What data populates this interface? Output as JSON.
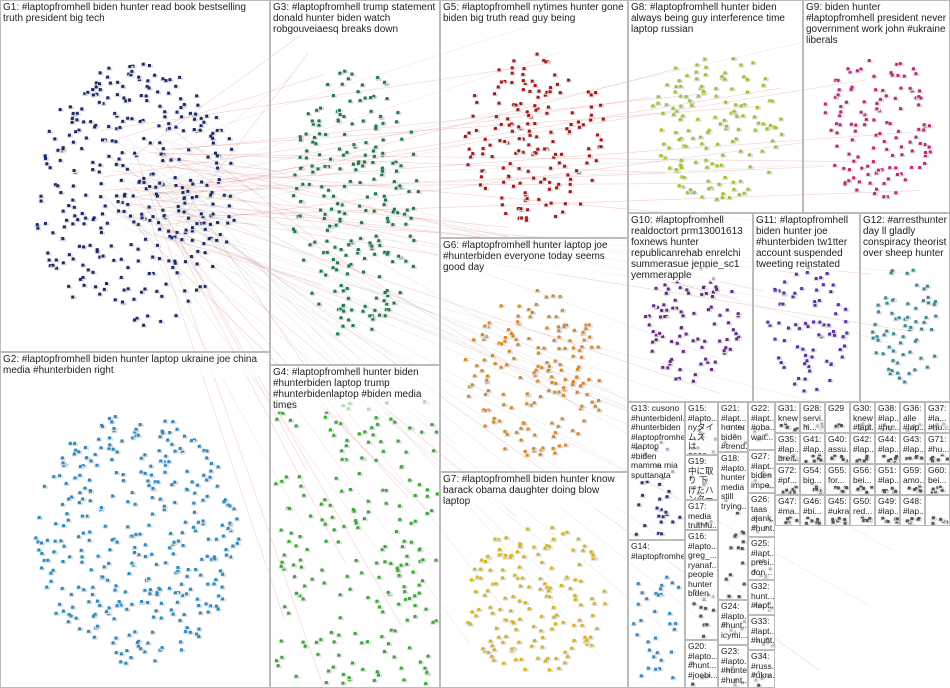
{
  "groups": [
    {
      "label": "G1: #laptopfromhell biden hunter read book bestselling truth president big tech"
    },
    {
      "label": "G2: #laptopfromhell biden hunter laptop ukraine joe china media #hunterbiden right"
    },
    {
      "label": "G3: #laptopfromhell trump statement donald hunter biden watch robgouveiaesq breaks down"
    },
    {
      "label": "G4: #laptopfromhell hunter biden #hunterbiden laptop trump #hunterbidenlaptop #biden media times"
    },
    {
      "label": "G5: #laptopfromhell nytimes hunter gone biden big truth read guy being"
    },
    {
      "label": "G6: #laptopfromhell hunter laptop joe #hunterbiden everyone today seems good day"
    },
    {
      "label": "G7: #laptopfromhell biden hunter know barack obama daughter doing blow laptop"
    },
    {
      "label": "G8: #laptopfromhell hunter biden always being guy interference time laptop russian"
    },
    {
      "label": "G9: biden hunter #laptopfromhell president never government work john #ukraine liberals"
    },
    {
      "label": "G10: #laptopfromhell realdoctort prm13001613 foxnews hunter republicanrehab enrelchi summerasue jennie_sc1 yemmerapple"
    },
    {
      "label": "G11: #laptopfromhell biden hunter joe #hunterbiden tw1tter account suspended tweeting reinstated"
    },
    {
      "label": "G12: #arresthunter day ll gladly conspiracy theorist over sheep hunter"
    },
    {
      "label": "G13: cusono #hunterbidenl... #hunterbiden #laptopfromhell #laptop #biden mamma mia sputtanata"
    },
    {
      "label": "G14: #laptopfromhell"
    },
    {
      "label": "G15: #lapto... nyタイムズ は 2020年 の選挙"
    },
    {
      "label": "G19: 中に取り 下げたハ ンター"
    },
    {
      "label": "G17: media truthfu... conte..."
    },
    {
      "label": "G16: #lapto... greg_... ryanaf... people hunter biden"
    },
    {
      "label": "G20: #lapto... #hunt... #joebi..."
    },
    {
      "label": "G21: #lapt... hunter biden #trend..."
    },
    {
      "label": "G18: #lapto... hunter media still trying..."
    },
    {
      "label": "G24: #lapto... #hunt... icymi..."
    },
    {
      "label": "G23: #lapto... #hunter #hunt..."
    },
    {
      "label": "G22: #lapt... #oba... wait..."
    },
    {
      "label": "G27: #lapt... biden impe..."
    },
    {
      "label": "G26: taas ajank... #hunt..."
    },
    {
      "label": "G25: #lapt... presi... don..."
    },
    {
      "label": "G32: hunt... #lapt..."
    },
    {
      "label": "G33: #lapt... #hunt..."
    },
    {
      "label": "G34: #russ... #ukra..."
    },
    {
      "label": "G31: knew"
    },
    {
      "label": "G28: servi... hi..."
    },
    {
      "label": "G29"
    },
    {
      "label": "G30: knew #lapt..."
    },
    {
      "label": "G38: #lap... #hu..."
    },
    {
      "label": "G36: alle #lap..."
    },
    {
      "label": "G37: #la... #hu..."
    },
    {
      "label": "G35: #lap... breit..."
    },
    {
      "label": "G41: #lap..."
    },
    {
      "label": "G40: assu..."
    },
    {
      "label": "G42: #lap..."
    },
    {
      "label": "G44: #lap..."
    },
    {
      "label": "G43: #lap..."
    },
    {
      "label": "G71: #hu..."
    },
    {
      "label": "G72: #pf..."
    },
    {
      "label": "G54: big..."
    },
    {
      "label": "G55: for..."
    },
    {
      "label": "G56: bei..."
    },
    {
      "label": "G51: #lap..."
    },
    {
      "label": "G59: amo..."
    },
    {
      "label": "G60: bei..."
    },
    {
      "label": "G47: #ma..."
    },
    {
      "label": "G46: #bi..."
    },
    {
      "label": "G45: #ukra..."
    },
    {
      "label": "G50: red..."
    },
    {
      "label": "G49: #lap..."
    },
    {
      "label": "G48: #lap..."
    }
  ]
}
